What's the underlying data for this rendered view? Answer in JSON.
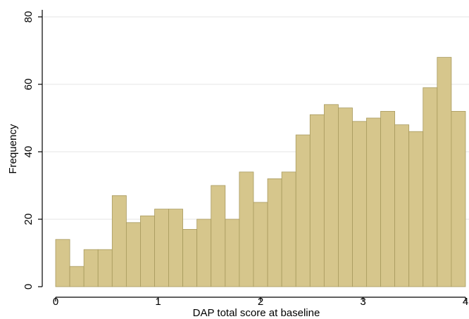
{
  "chart_data": {
    "type": "bar",
    "subtype": "histogram",
    "xlabel": "DAP total score at baseline",
    "ylabel": "Frequency",
    "xlim": [
      0,
      4
    ],
    "ylim": [
      0,
      80
    ],
    "x_ticks": [
      "0",
      "1",
      "2",
      "3",
      "4"
    ],
    "y_ticks": [
      "0",
      "20",
      "40",
      "60",
      "80"
    ],
    "grid": "horizontal",
    "bin_width": 0.1379,
    "bin_starts": [
      0.0,
      0.138,
      0.276,
      0.414,
      0.552,
      0.69,
      0.828,
      0.966,
      1.103,
      1.241,
      1.379,
      1.517,
      1.655,
      1.793,
      1.931,
      2.069,
      2.207,
      2.345,
      2.483,
      2.621,
      2.759,
      2.897,
      3.034,
      3.172,
      3.31,
      3.448,
      3.586,
      3.724,
      3.862
    ],
    "values": [
      14,
      6,
      11,
      11,
      27,
      19,
      21,
      23,
      23,
      17,
      20,
      30,
      20,
      34,
      25,
      32,
      34,
      45,
      51,
      54,
      53,
      49,
      50,
      52,
      48,
      46,
      59,
      68,
      52
    ],
    "colors": {
      "bar_fill": "#d6c68c",
      "bar_stroke": "#a89a5e",
      "grid": "#e6e6e6",
      "axis": "#000000"
    }
  }
}
